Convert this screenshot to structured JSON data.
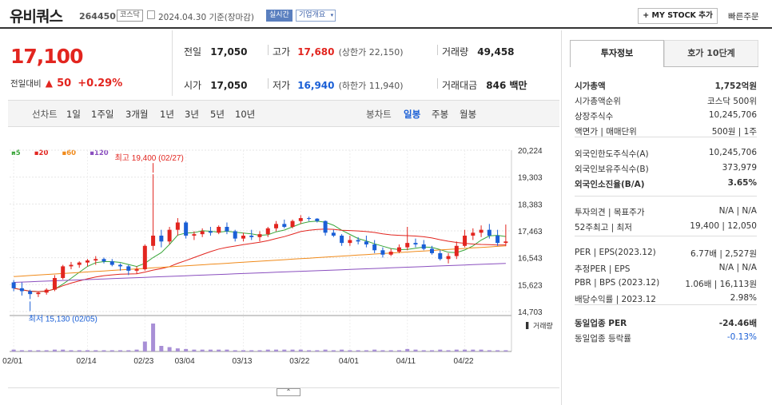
{
  "header": {
    "company": "유비쿼스",
    "code": "264450",
    "market_tag": "코스닥",
    "date_text": "2024.04.30 기준(장마감)",
    "realtime_label": "실시간",
    "company_info_label": "기업개요",
    "my_stock_label": "+ MY STOCK 추가",
    "quick_order_label": "빠른주문"
  },
  "price": {
    "current": "17,100",
    "change_label": "전일대비",
    "change_arrow": "▲",
    "change_amount": "50",
    "change_pct": "+0.29%"
  },
  "summary": {
    "prev_label": "전일",
    "prev": "17,050",
    "high_label": "고가",
    "high": "17,680",
    "upper_limit": "(상한가 22,150)",
    "volume_label": "거래량",
    "volume": "49,458",
    "open_label": "시가",
    "open": "17,050",
    "low_label": "저가",
    "low": "16,940",
    "lower_limit": "(하한가 11,940)",
    "amount_label": "거래대금",
    "amount": "846 백만"
  },
  "period_bar": {
    "line_label": "선차트",
    "line_periods": [
      "1일",
      "1주일",
      "3개월",
      "1년",
      "3년",
      "5년",
      "10년"
    ],
    "candle_label": "봉차트",
    "candle_periods": [
      "일봉",
      "주봉",
      "월봉"
    ]
  },
  "chart_data": {
    "type": "candlestick",
    "legend": [
      {
        "name": "5",
        "color": "#3aa63a"
      },
      {
        "name": "20",
        "color": "#e2251f"
      },
      {
        "name": "60",
        "color": "#f08a1a"
      },
      {
        "name": "120",
        "color": "#8a4fbf"
      }
    ],
    "yticks": [
      14703,
      15623,
      16543,
      17463,
      18383,
      19303,
      20224
    ],
    "ytick_labels": [
      "14,703",
      "15,623",
      "16,543",
      "17,463",
      "18,383",
      "19,303",
      "20,224"
    ],
    "ylim": [
      14703,
      20224
    ],
    "xticks": [
      {
        "label": "02/01",
        "index": 0
      },
      {
        "label": "02/14",
        "index": 9
      },
      {
        "label": "02/23",
        "index": 16
      },
      {
        "label": "03/04",
        "index": 21
      },
      {
        "label": "03/13",
        "index": 28
      },
      {
        "label": "03/22",
        "index": 35
      },
      {
        "label": "04/01",
        "index": 41
      },
      {
        "label": "04/11",
        "index": 48
      },
      {
        "label": "04/22",
        "index": 55
      }
    ],
    "high_annotation": "최고 19,400 (02/27)",
    "high_value": 19400,
    "high_index": 17,
    "low_annotation": "최저 15,130 (02/05)",
    "low_value": 15130,
    "low_index": 2,
    "volume_label": "거래량",
    "candles": [
      [
        15700,
        15780,
        15400,
        15500
      ],
      [
        15500,
        15700,
        15250,
        15400
      ],
      [
        15400,
        15450,
        15130,
        15300
      ],
      [
        15300,
        15400,
        15200,
        15350
      ],
      [
        15350,
        15500,
        15280,
        15450
      ],
      [
        15450,
        15950,
        15400,
        15850
      ],
      [
        15850,
        16300,
        15800,
        16250
      ],
      [
        16250,
        16400,
        16150,
        16300
      ],
      [
        16300,
        16420,
        16200,
        16380
      ],
      [
        16380,
        16500,
        16250,
        16450
      ],
      [
        16450,
        16600,
        16300,
        16500
      ],
      [
        16500,
        16550,
        16350,
        16420
      ],
      [
        16420,
        16500,
        16250,
        16300
      ],
      [
        16300,
        16350,
        16100,
        16250
      ],
      [
        16250,
        16300,
        15950,
        16100
      ],
      [
        16100,
        16250,
        16000,
        16150
      ],
      [
        16150,
        17000,
        16100,
        16950
      ],
      [
        16950,
        19400,
        16800,
        17300
      ],
      [
        17300,
        17500,
        16900,
        17100
      ],
      [
        17100,
        17600,
        17000,
        17500
      ],
      [
        17500,
        17900,
        17300,
        17750
      ],
      [
        17750,
        17800,
        17200,
        17300
      ],
      [
        17300,
        17450,
        17150,
        17350
      ],
      [
        17350,
        17550,
        17250,
        17450
      ],
      [
        17450,
        17600,
        17300,
        17400
      ],
      [
        17400,
        17650,
        17350,
        17600
      ],
      [
        17600,
        17750,
        17350,
        17450
      ],
      [
        17450,
        17500,
        17100,
        17200
      ],
      [
        17200,
        17400,
        17100,
        17300
      ],
      [
        17300,
        17500,
        17150,
        17250
      ],
      [
        17250,
        17450,
        17100,
        17350
      ],
      [
        17350,
        17600,
        17250,
        17550
      ],
      [
        17550,
        17800,
        17450,
        17700
      ],
      [
        17700,
        17850,
        17550,
        17600
      ],
      [
        17600,
        17850,
        17550,
        17800
      ],
      [
        17800,
        18000,
        17700,
        17900
      ],
      [
        17900,
        17950,
        17800,
        17880
      ],
      [
        17880,
        17900,
        17750,
        17800
      ],
      [
        17800,
        17820,
        17300,
        17400
      ],
      [
        17400,
        17500,
        17250,
        17300
      ],
      [
        17300,
        17350,
        16950,
        17050
      ],
      [
        17050,
        17300,
        16950,
        17150
      ],
      [
        17150,
        17250,
        17000,
        17100
      ],
      [
        17100,
        17300,
        16900,
        17000
      ],
      [
        17000,
        17150,
        16700,
        16800
      ],
      [
        16800,
        16900,
        16550,
        16650
      ],
      [
        16650,
        16850,
        16600,
        16750
      ],
      [
        16750,
        17000,
        16700,
        16900
      ],
      [
        16900,
        17600,
        16800,
        17050
      ],
      [
        17050,
        17200,
        16900,
        17000
      ],
      [
        17000,
        17150,
        16800,
        16850
      ],
      [
        16850,
        16950,
        16650,
        16700
      ],
      [
        16700,
        16800,
        16450,
        16500
      ],
      [
        16500,
        16700,
        16350,
        16600
      ],
      [
        16600,
        17100,
        16500,
        16950
      ],
      [
        16950,
        17500,
        16900,
        17300
      ],
      [
        17300,
        17550,
        17150,
        17400
      ],
      [
        17400,
        17650,
        17250,
        17500
      ],
      [
        17500,
        17700,
        17200,
        17300
      ],
      [
        17300,
        17500,
        16950,
        17050
      ],
      [
        17050,
        17680,
        16940,
        17100
      ]
    ],
    "volumes": [
      3,
      2,
      2,
      2,
      2,
      3,
      3,
      2,
      2,
      2,
      2,
      2,
      2,
      2,
      2,
      3,
      16,
      45,
      9,
      7,
      5,
      4,
      3,
      3,
      3,
      3,
      3,
      2,
      2,
      2,
      2,
      3,
      3,
      3,
      3,
      3,
      2,
      2,
      3,
      2,
      3,
      2,
      2,
      2,
      3,
      2,
      2,
      2,
      4,
      3,
      2,
      2,
      3,
      2,
      3,
      3,
      3,
      3,
      2,
      2,
      2
    ]
  },
  "right": {
    "tab_active": "투자정보",
    "tab_other": "호가 10단계",
    "rows1": [
      {
        "label": "시가총액",
        "value": "1,752억원",
        "bold": true
      },
      {
        "label": "시가총액순위",
        "value": "코스닥 500위"
      },
      {
        "label": "상장주식수",
        "value": "10,245,706"
      },
      {
        "label": "액면가 | 매매단위",
        "value": "500원 | 1주"
      }
    ],
    "rows2": [
      {
        "label": "외국인한도주식수(A)",
        "value": "10,245,706"
      },
      {
        "label": "외국인보유주식수(B)",
        "value": "373,979"
      },
      {
        "label": "외국인소진율(B/A)",
        "value": "3.65%",
        "bold": true
      }
    ],
    "rows3": [
      {
        "label": "투자의견 | 목표주가",
        "value": "N/A | N/A"
      },
      {
        "label": "52주최고 | 최저",
        "value": "19,400 | 12,050"
      }
    ],
    "rows4": [
      {
        "label": "PER | EPS(2023.12)",
        "value": "6.77배 | 2,527원"
      },
      {
        "label": "추정PER | EPS",
        "value": "N/A | N/A"
      },
      {
        "label": "PBR | BPS (2023.12)",
        "value": "1.06배 | 16,113원"
      },
      {
        "label": "배당수익률 | 2023.12",
        "value": "2.98%"
      }
    ],
    "rows5": [
      {
        "label": "동일업종 PER",
        "value": "-24.46배",
        "bold": true
      },
      {
        "label": "동일업종 등락률",
        "value": "-0.13%",
        "blue": true
      }
    ]
  }
}
